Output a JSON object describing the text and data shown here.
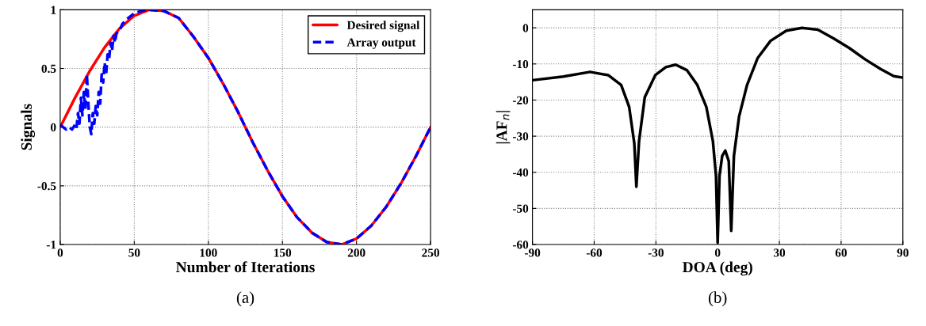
{
  "chart_data": [
    {
      "type": "line",
      "xlabel": "Number of Iterations",
      "ylabel": "Signals",
      "annotations": [
        "(a)"
      ],
      "xlim": [
        0,
        250
      ],
      "ylim": [
        -1,
        1
      ],
      "xticks": [
        0,
        50,
        100,
        150,
        200,
        250
      ],
      "yticks": [
        -1,
        -0.5,
        0,
        0.5,
        1
      ],
      "grid": true,
      "legend": "top right",
      "series": [
        {
          "name": "Desired signal",
          "color": "#ff0000",
          "line_style": "solid",
          "x": [
            0,
            10,
            20,
            30,
            40,
            50,
            60,
            70,
            80,
            90,
            100,
            110,
            120,
            130,
            140,
            150,
            160,
            170,
            180,
            190,
            200,
            210,
            220,
            230,
            240,
            250
          ],
          "values": [
            0,
            0.25,
            0.48,
            0.68,
            0.84,
            0.95,
            1.0,
            0.99,
            0.93,
            0.77,
            0.59,
            0.37,
            0.13,
            -0.13,
            -0.37,
            -0.59,
            -0.77,
            -0.9,
            -0.98,
            -1.0,
            -0.95,
            -0.84,
            -0.68,
            -0.48,
            -0.25,
            0
          ]
        },
        {
          "name": "Array output",
          "color": "#0000ff",
          "line_style": "dashed",
          "x": [
            0,
            2,
            4,
            6,
            8,
            10,
            11,
            12,
            13,
            14,
            15,
            16,
            17,
            18,
            19,
            20,
            21,
            22,
            23,
            24,
            25,
            26,
            27,
            28,
            29,
            30,
            31,
            32,
            33,
            34,
            35,
            36,
            37,
            38,
            40,
            42,
            45,
            50,
            55,
            60,
            70,
            80,
            90,
            100,
            110,
            120,
            130,
            140,
            150,
            160,
            170,
            180,
            190,
            200,
            210,
            220,
            230,
            240,
            250
          ],
          "values": [
            0.02,
            0.0,
            -0.02,
            0.0,
            -0.02,
            0.02,
            -0.01,
            0.12,
            0.03,
            0.25,
            0.1,
            0.3,
            0.15,
            0.45,
            0.2,
            0.0,
            -0.06,
            0.12,
            0.03,
            0.18,
            0.1,
            0.3,
            0.2,
            0.45,
            0.38,
            0.55,
            0.45,
            0.62,
            0.58,
            0.72,
            0.65,
            0.78,
            0.72,
            0.8,
            0.82,
            0.88,
            0.92,
            0.97,
            0.99,
            1.0,
            0.99,
            0.93,
            0.77,
            0.59,
            0.37,
            0.13,
            -0.13,
            -0.37,
            -0.59,
            -0.77,
            -0.9,
            -0.98,
            -1.0,
            -0.95,
            -0.84,
            -0.68,
            -0.48,
            -0.25,
            0
          ]
        }
      ]
    },
    {
      "type": "line",
      "xlabel": "DOA (deg)",
      "ylabel": "|AF$_{n}$|",
      "annotations": [
        "(b)"
      ],
      "xlim": [
        -90,
        90
      ],
      "ylim": [
        -60,
        5
      ],
      "xticks": [
        -90,
        -60,
        -30,
        0,
        30,
        60,
        90
      ],
      "yticks": [
        -60,
        -50,
        -40,
        -30,
        -20,
        -10,
        0
      ],
      "grid": true,
      "series": [
        {
          "color": "#000000",
          "line_style": "solid",
          "x": [
            -90,
            -75,
            -62,
            -53.2,
            -46.9,
            -43,
            -40.5,
            -39.5,
            -38.2,
            -35.4,
            -30.3,
            -25.2,
            -20.4,
            -15,
            -9.9,
            -5.5,
            -2.3,
            -0.8,
            0,
            0.9,
            2.2,
            3.7,
            5.4,
            6.6,
            7.9,
            10.4,
            14.3,
            19.4,
            25.7,
            33.4,
            41,
            48.7,
            56.3,
            64,
            71.6,
            79.2,
            85.6,
            90
          ],
          "values": [
            -14.5,
            -13.5,
            -12.2,
            -13.1,
            -15.8,
            -21.9,
            -32,
            -44,
            -31.4,
            -19.2,
            -13.1,
            -10.9,
            -10.2,
            -11.7,
            -15.8,
            -21.9,
            -31.4,
            -41,
            -59.5,
            -41,
            -35.5,
            -34,
            -36.9,
            -56.2,
            -35.5,
            -24.6,
            -15.8,
            -8.4,
            -3.6,
            -0.8,
            0,
            -0.5,
            -2.9,
            -5.6,
            -8.7,
            -11.4,
            -13.4,
            -13.8
          ]
        }
      ]
    }
  ]
}
